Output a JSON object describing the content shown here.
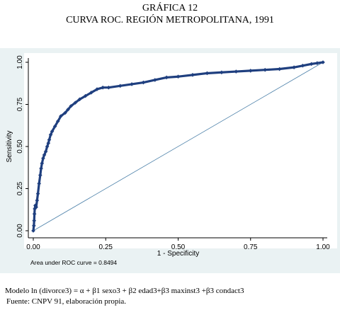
{
  "figure": {
    "title_line1": "GRÁFICA 12",
    "title_line2": "CURVA ROC. REGIÓN METROPOLITANA, 1991",
    "model_note": "Modelo ln (divorce3) = α + β1 sexo3 + β2 edad3+β3 maxinst3 +β3 condact3",
    "source_note": "Fuente: CNPV 91, elaboración propia."
  },
  "chart_data": {
    "type": "line",
    "xlabel": "1 - Specificity",
    "ylabel": "Sensitivity",
    "xlim": [
      0,
      1
    ],
    "ylim": [
      0,
      1
    ],
    "x_ticks": [
      0,
      0.25,
      0.5,
      0.75,
      1
    ],
    "x_tick_labels": [
      "0.00",
      "0.25",
      "0.50",
      "0.75",
      "1.00"
    ],
    "y_ticks": [
      0,
      0.25,
      0.5,
      0.75,
      1
    ],
    "y_tick_labels": [
      "0.00",
      "0.25",
      "0.50",
      "0.75",
      "1.00"
    ],
    "grid": false,
    "annotation": "Area under ROC curve = 0.8494",
    "marker_color": "#1f3f7f",
    "reference_line_color": "#4a7fa8",
    "series": [
      {
        "x": [
          0,
          0.002,
          0.003,
          0.004,
          0.005,
          0.007,
          0.01,
          0.013,
          0.016,
          0.02,
          0.024,
          0.027,
          0.03,
          0.034,
          0.038,
          0.043,
          0.048,
          0.052,
          0.055,
          0.06,
          0.065,
          0.075,
          0.085,
          0.095,
          0.11,
          0.12,
          0.13,
          0.145,
          0.16,
          0.18,
          0.2,
          0.22,
          0.24,
          0.26,
          0.3,
          0.34,
          0.38,
          0.42,
          0.46,
          0.5,
          0.55,
          0.6,
          0.65,
          0.7,
          0.75,
          0.8,
          0.85,
          0.9,
          0.93,
          0.96,
          0.98,
          1
        ],
        "y": [
          0,
          0.03,
          0.06,
          0.1,
          0.13,
          0.15,
          0.14,
          0.18,
          0.22,
          0.28,
          0.33,
          0.37,
          0.4,
          0.43,
          0.45,
          0.47,
          0.5,
          0.52,
          0.54,
          0.57,
          0.59,
          0.62,
          0.65,
          0.68,
          0.7,
          0.72,
          0.74,
          0.76,
          0.78,
          0.8,
          0.82,
          0.84,
          0.85,
          0.85,
          0.86,
          0.87,
          0.88,
          0.895,
          0.91,
          0.915,
          0.925,
          0.935,
          0.94,
          0.945,
          0.95,
          0.955,
          0.96,
          0.97,
          0.98,
          0.99,
          0.995,
          1
        ]
      },
      {
        "x": [
          0,
          1
        ],
        "y": [
          0,
          1
        ]
      }
    ]
  }
}
